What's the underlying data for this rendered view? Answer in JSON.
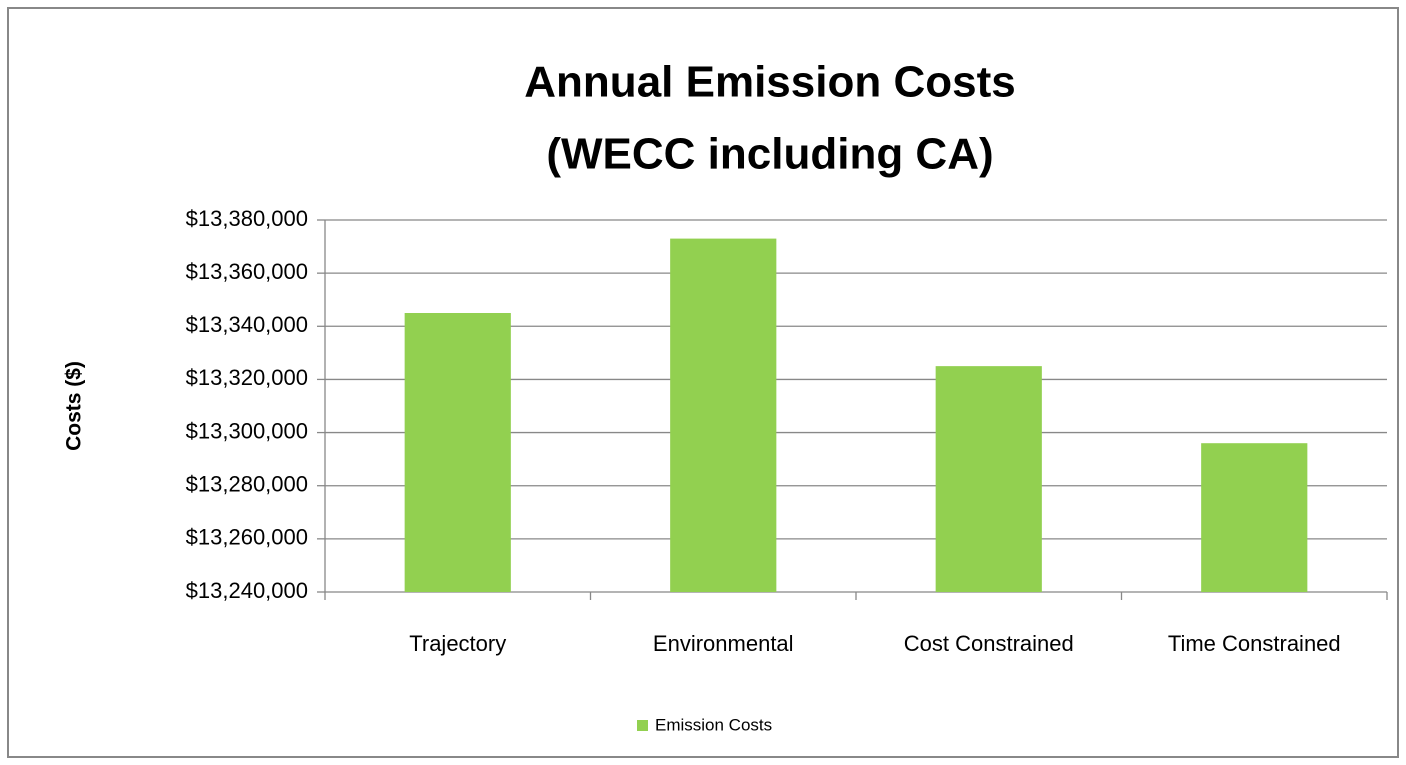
{
  "chart_data": {
    "type": "bar",
    "title": [
      "Annual Emission Costs",
      "(WECC including CA)"
    ],
    "y_label": "Costs ($)",
    "categories": [
      "Trajectory",
      "Environmental",
      "Cost Constrained",
      "Time Constrained"
    ],
    "series": [
      {
        "name": "Emission Costs",
        "color": "#92d050",
        "values": [
          13345000,
          13373000,
          13325000,
          13296000
        ]
      }
    ],
    "ylim": [
      13240000,
      13380000
    ],
    "yticks": [
      {
        "value": 13240000,
        "label": "$13,240,000"
      },
      {
        "value": 13260000,
        "label": "$13,260,000"
      },
      {
        "value": 13280000,
        "label": "$13,280,000"
      },
      {
        "value": 13300000,
        "label": "$13,300,000"
      },
      {
        "value": 13320000,
        "label": "$13,320,000"
      },
      {
        "value": 13340000,
        "label": "$13,340,000"
      },
      {
        "value": 13360000,
        "label": "$13,360,000"
      },
      {
        "value": 13380000,
        "label": "$13,380,000"
      }
    ],
    "grid": true,
    "legend": "bottom"
  }
}
